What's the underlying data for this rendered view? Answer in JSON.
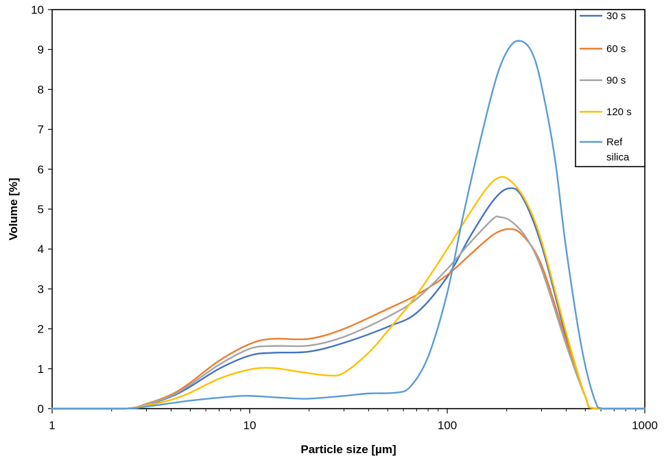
{
  "chart_data": {
    "type": "line",
    "xlabel": "Particle size [µm]",
    "ylabel": "Volume [%]",
    "xscale": "log",
    "xlim": [
      1,
      1000
    ],
    "ylim": [
      0,
      10
    ],
    "x_ticks": [
      "1",
      "10",
      "100",
      "1000"
    ],
    "y_ticks": [
      "0",
      "1",
      "2",
      "3",
      "4",
      "5",
      "6",
      "7",
      "8",
      "9",
      "10"
    ],
    "grid": false,
    "legend_position": "top-right",
    "series": [
      {
        "name": "30 s",
        "color": "#4472c4",
        "x": [
          1,
          2.3,
          3,
          4,
          5,
          7,
          10,
          13,
          20,
          30,
          50,
          70,
          100,
          130,
          170,
          205,
          240,
          300,
          400,
          500,
          560,
          1000
        ],
        "y": [
          0,
          0,
          0.1,
          0.3,
          0.55,
          1.0,
          1.33,
          1.4,
          1.43,
          1.65,
          2.05,
          2.4,
          3.3,
          4.3,
          5.2,
          5.52,
          5.3,
          4.1,
          1.8,
          0.3,
          0,
          0
        ]
      },
      {
        "name": "60 s",
        "color": "#ed7d31",
        "x": [
          1,
          2.3,
          3,
          4,
          5,
          7,
          10,
          13,
          20,
          30,
          50,
          70,
          100,
          130,
          170,
          205,
          240,
          300,
          400,
          500,
          560,
          1000
        ],
        "y": [
          0,
          0,
          0.12,
          0.35,
          0.65,
          1.2,
          1.62,
          1.75,
          1.75,
          2.0,
          2.5,
          2.85,
          3.35,
          3.85,
          4.35,
          4.5,
          4.35,
          3.6,
          1.7,
          0.3,
          0,
          0
        ]
      },
      {
        "name": "90 s",
        "color": "#a5a5a5",
        "x": [
          1,
          2.3,
          3,
          4,
          5,
          7,
          10,
          13,
          20,
          30,
          50,
          70,
          100,
          130,
          170,
          185,
          210,
          250,
          300,
          400,
          500,
          560,
          1000
        ],
        "y": [
          0,
          0,
          0.11,
          0.32,
          0.6,
          1.1,
          1.5,
          1.57,
          1.58,
          1.8,
          2.3,
          2.75,
          3.5,
          4.15,
          4.75,
          4.8,
          4.7,
          4.3,
          3.5,
          1.6,
          0.3,
          0,
          0
        ]
      },
      {
        "name": "120 s",
        "color": "#ffc000",
        "x": [
          1,
          2.3,
          3,
          4,
          5,
          7,
          10,
          13,
          18,
          25,
          30,
          40,
          50,
          70,
          100,
          130,
          160,
          185,
          210,
          250,
          300,
          400,
          500,
          560,
          1000
        ],
        "y": [
          0,
          0,
          0.08,
          0.22,
          0.4,
          0.75,
          0.98,
          1.02,
          0.92,
          0.83,
          0.9,
          1.4,
          1.95,
          2.85,
          4.0,
          4.9,
          5.55,
          5.8,
          5.7,
          5.2,
          4.2,
          1.9,
          0.3,
          0,
          0
        ]
      },
      {
        "name": "Ref silica",
        "color": "#5b9bd5",
        "x": [
          1,
          2.3,
          3,
          5,
          8,
          10,
          15,
          20,
          30,
          40,
          55,
          65,
          80,
          100,
          120,
          150,
          180,
          210,
          240,
          270,
          300,
          350,
          400,
          480,
          560,
          620,
          1000
        ],
        "y": [
          0,
          0,
          0.05,
          0.2,
          0.3,
          0.32,
          0.27,
          0.25,
          0.32,
          0.38,
          0.4,
          0.55,
          1.3,
          2.9,
          4.8,
          6.9,
          8.4,
          9.1,
          9.2,
          8.9,
          8.1,
          6.3,
          4.0,
          1.5,
          0.2,
          0,
          0
        ]
      }
    ]
  }
}
